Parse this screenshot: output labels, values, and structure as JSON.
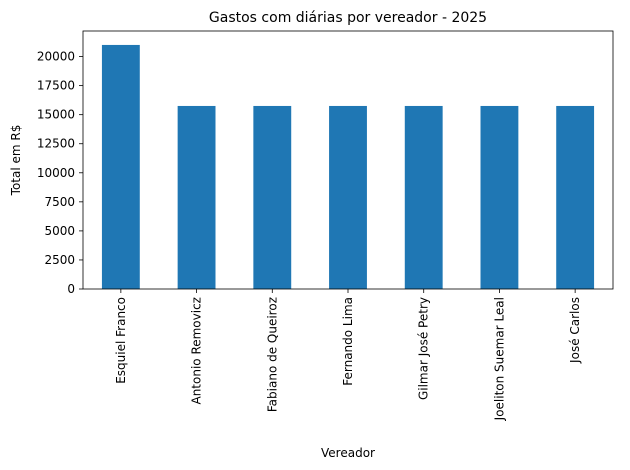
{
  "chart_data": {
    "type": "bar",
    "title": "Gastos com diárias por vereador - 2025",
    "xlabel": "Vereador",
    "ylabel": "Total em R$",
    "categories": [
      "Esquiel Franco",
      "Antonio Removicz",
      "Fabiano de Queiroz",
      "Fernando Lima",
      "Gilmar José Petry",
      "Joeliton Suemar Leal",
      "José Carlos"
    ],
    "values": [
      21000,
      15750,
      15750,
      15750,
      15750,
      15750,
      15750
    ],
    "color": "#1f77b4",
    "ylim": [
      0,
      22200
    ],
    "yticks": [
      0,
      2500,
      5000,
      7500,
      10000,
      12500,
      15000,
      17500,
      20000
    ],
    "grid": false
  }
}
